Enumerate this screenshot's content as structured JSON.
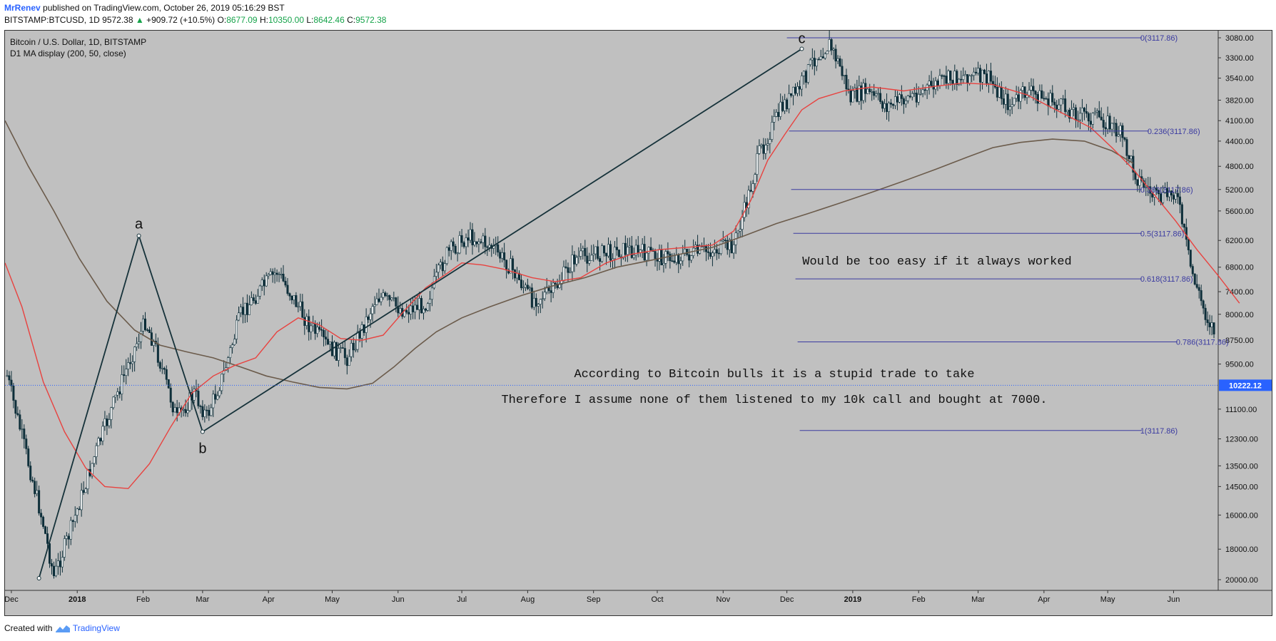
{
  "header": {
    "author": "MrRenev",
    "published": "published on TradingView.com, October 26, 2019 05:16:29 BST",
    "symbol_line": "BITSTAMP:BTCUSD, 1D",
    "last": "9572.38",
    "change": "+909.72 (+10.5%)",
    "open_label": "O:",
    "open": "8677.09",
    "high_label": "H:",
    "high": "10350.00",
    "low_label": "L:",
    "low": "8642.46",
    "close_label": "C:",
    "close": "9572.38"
  },
  "legend": {
    "title": "Bitcoin / U.S. Dollar, 1D, BITSTAMP",
    "indicator": "D1 MA display (200, 50, close)"
  },
  "footer": {
    "created_with": "Created with",
    "brand": "TradingView"
  },
  "colors": {
    "background": "#c0c0c0",
    "candle": "#0e2f3a",
    "ma_50": "#e8423f",
    "ma_200": "#6b5b4b",
    "fib": "#3a3aa0",
    "abc_line": "#16323a",
    "price_badge": "#2962ff"
  },
  "chart_data": {
    "type": "line",
    "subtype": "candlestick",
    "title": "Bitcoin / U.S. Dollar, 1D, BITSTAMP",
    "y_axis_inverted": true,
    "y_scale": "log",
    "ylim": [
      3080,
      20000
    ],
    "y_ticks": [
      "3080.00",
      "3300.00",
      "3540.00",
      "3820.00",
      "4100.00",
      "4400.00",
      "4800.00",
      "5200.00",
      "5600.00",
      "6200.00",
      "6800.00",
      "7400.00",
      "8000.00",
      "8750.00",
      "9500.00",
      "11100.00",
      "12300.00",
      "13500.00",
      "14500.00",
      "16000.00",
      "18000.00",
      "20000.00"
    ],
    "y_tick_values": [
      3080,
      3300,
      3540,
      3820,
      4100,
      4400,
      4800,
      5200,
      5600,
      6200,
      6800,
      7400,
      8000,
      8750,
      9500,
      11100,
      12300,
      13500,
      14500,
      16000,
      18000,
      20000
    ],
    "x_ticks": [
      "Dec",
      "2018",
      "Feb",
      "Mar",
      "Apr",
      "May",
      "Jun",
      "Jul",
      "Aug",
      "Sep",
      "Oct",
      "Nov",
      "Dec",
      "2019",
      "Feb",
      "Mar",
      "Apr",
      "May",
      "Jun"
    ],
    "x_tick_positions": [
      0,
      31,
      62,
      90,
      121,
      151,
      182,
      212,
      243,
      274,
      304,
      335,
      365,
      396,
      427,
      455,
      486,
      516,
      547
    ],
    "x_range_days": [
      -3,
      568
    ],
    "current_price_label": "10222.12",
    "current_price": 10222.12,
    "price_path": [
      [
        -3,
        9600
      ],
      [
        15,
        16500
      ],
      [
        20,
        19800
      ],
      [
        28,
        16800
      ],
      [
        40,
        12800
      ],
      [
        55,
        9500
      ],
      [
        63,
        8200
      ],
      [
        68,
        9000
      ],
      [
        78,
        11500
      ],
      [
        86,
        10500
      ],
      [
        92,
        11400
      ],
      [
        100,
        9800
      ],
      [
        108,
        8000
      ],
      [
        118,
        7300
      ],
      [
        125,
        6900
      ],
      [
        132,
        7500
      ],
      [
        140,
        8300
      ],
      [
        150,
        9000
      ],
      [
        158,
        9300
      ],
      [
        166,
        8300
      ],
      [
        172,
        7500
      ],
      [
        185,
        7900
      ],
      [
        195,
        7700
      ],
      [
        205,
        6500
      ],
      [
        215,
        6100
      ],
      [
        225,
        6300
      ],
      [
        235,
        6800
      ],
      [
        245,
        7600
      ],
      [
        255,
        7400
      ],
      [
        265,
        6600
      ],
      [
        275,
        6500
      ],
      [
        290,
        6400
      ],
      [
        300,
        6500
      ],
      [
        310,
        6600
      ],
      [
        320,
        6500
      ],
      [
        332,
        6400
      ],
      [
        340,
        6300
      ],
      [
        345,
        5600
      ],
      [
        352,
        4600
      ],
      [
        358,
        4200
      ],
      [
        363,
        3900
      ],
      [
        370,
        3700
      ],
      [
        378,
        3300
      ],
      [
        385,
        3150
      ],
      [
        390,
        3400
      ],
      [
        395,
        3800
      ],
      [
        402,
        3700
      ],
      [
        412,
        3900
      ],
      [
        425,
        3750
      ],
      [
        440,
        3560
      ],
      [
        450,
        3500
      ],
      [
        460,
        3550
      ],
      [
        470,
        3900
      ],
      [
        478,
        3700
      ],
      [
        490,
        3850
      ],
      [
        502,
        4000
      ],
      [
        515,
        4100
      ],
      [
        522,
        4300
      ],
      [
        530,
        5000
      ],
      [
        540,
        5400
      ],
      [
        548,
        5200
      ],
      [
        555,
        6800
      ],
      [
        562,
        8000
      ],
      [
        575,
        9500
      ],
      [
        582,
        8800
      ],
      [
        592,
        9500
      ],
      [
        602,
        9800
      ],
      [
        612,
        10000
      ],
      [
        620,
        9600
      ],
      [
        625,
        9300
      ],
      [
        635,
        8200
      ],
      [
        645,
        7900
      ],
      [
        655,
        8000
      ],
      [
        662,
        8400
      ],
      [
        672,
        8000
      ],
      [
        682,
        8700
      ],
      [
        692,
        9800
      ]
    ],
    "ma_50": [
      [
        -3,
        6700
      ],
      [
        5,
        7800
      ],
      [
        15,
        10100
      ],
      [
        25,
        12000
      ],
      [
        35,
        13600
      ],
      [
        44,
        14500
      ],
      [
        55,
        14600
      ],
      [
        65,
        13400
      ],
      [
        75,
        11800
      ],
      [
        85,
        10500
      ],
      [
        95,
        9900
      ],
      [
        105,
        9550
      ],
      [
        115,
        9300
      ],
      [
        125,
        8500
      ],
      [
        135,
        8100
      ],
      [
        145,
        8300
      ],
      [
        155,
        8700
      ],
      [
        165,
        8750
      ],
      [
        175,
        8600
      ],
      [
        185,
        7900
      ],
      [
        195,
        7300
      ],
      [
        205,
        6950
      ],
      [
        212,
        6700
      ],
      [
        222,
        6750
      ],
      [
        232,
        6850
      ],
      [
        245,
        7050
      ],
      [
        256,
        7150
      ],
      [
        268,
        7050
      ],
      [
        280,
        6700
      ],
      [
        292,
        6500
      ],
      [
        305,
        6400
      ],
      [
        318,
        6350
      ],
      [
        330,
        6300
      ],
      [
        340,
        6000
      ],
      [
        348,
        5400
      ],
      [
        356,
        4700
      ],
      [
        364,
        4300
      ],
      [
        372,
        3950
      ],
      [
        380,
        3800
      ],
      [
        392,
        3700
      ],
      [
        405,
        3650
      ],
      [
        420,
        3700
      ],
      [
        435,
        3640
      ],
      [
        448,
        3600
      ],
      [
        462,
        3620
      ],
      [
        478,
        3750
      ],
      [
        495,
        4000
      ],
      [
        508,
        4200
      ],
      [
        518,
        4500
      ],
      [
        528,
        4850
      ],
      [
        538,
        5300
      ],
      [
        548,
        5800
      ],
      [
        558,
        6400
      ],
      [
        568,
        7000
      ],
      [
        578,
        7700
      ]
    ],
    "ma_200": [
      [
        -3,
        4100
      ],
      [
        8,
        4800
      ],
      [
        20,
        5600
      ],
      [
        32,
        6600
      ],
      [
        45,
        7650
      ],
      [
        58,
        8450
      ],
      [
        70,
        8900
      ],
      [
        82,
        9100
      ],
      [
        95,
        9300
      ],
      [
        108,
        9600
      ],
      [
        120,
        9900
      ],
      [
        132,
        10100
      ],
      [
        145,
        10300
      ],
      [
        158,
        10350
      ],
      [
        170,
        10150
      ],
      [
        180,
        9600
      ],
      [
        190,
        9000
      ],
      [
        200,
        8500
      ],
      [
        212,
        8100
      ],
      [
        225,
        7800
      ],
      [
        240,
        7500
      ],
      [
        255,
        7250
      ],
      [
        270,
        7050
      ],
      [
        285,
        6800
      ],
      [
        300,
        6650
      ],
      [
        315,
        6500
      ],
      [
        330,
        6350
      ],
      [
        345,
        6100
      ],
      [
        360,
        5850
      ],
      [
        375,
        5650
      ],
      [
        390,
        5450
      ],
      [
        405,
        5250
      ],
      [
        420,
        5050
      ],
      [
        435,
        4850
      ],
      [
        450,
        4650
      ],
      [
        462,
        4500
      ],
      [
        475,
        4420
      ],
      [
        490,
        4370
      ],
      [
        505,
        4400
      ],
      [
        518,
        4550
      ],
      [
        528,
        4750
      ]
    ],
    "abc_pattern": {
      "labels": [
        "a",
        "b",
        "c"
      ],
      "points": [
        [
          60,
          6100
        ],
        [
          90,
          12000
        ],
        [
          372,
          3200
        ]
      ],
      "start": [
        13,
        19900
      ]
    },
    "fib_levels": [
      {
        "label": "0(3117.86)",
        "value": 3080
      },
      {
        "label": "0.236(3117.86)",
        "value": 4250
      },
      {
        "label": "0.382(3117.86)",
        "value": 5200
      },
      {
        "label": "0.5(3117.86)",
        "value": 6050
      },
      {
        "label": "0.618(3117.86)",
        "value": 7080
      },
      {
        "label": "0.786(3117.86)",
        "value": 8800
      },
      {
        "label": "1(3117.86)",
        "value": 11950
      }
    ],
    "annotations": [
      "Would be too easy if it always worked",
      "According to Bitcoin bulls it is a stupid trade to take",
      "Therefore I assume none of them listened to my 10k call and bought at 7000."
    ]
  }
}
